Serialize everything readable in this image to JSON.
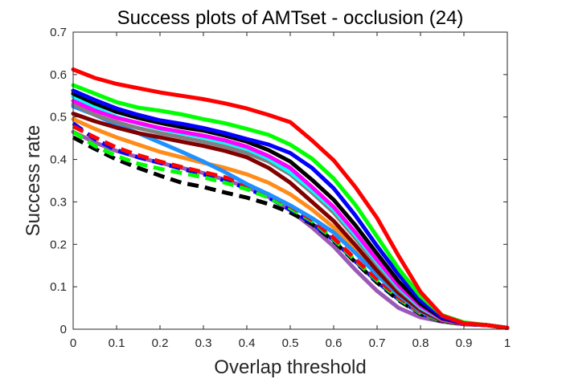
{
  "chart_data": {
    "type": "line",
    "title": "Success plots of AMTset - occlusion (24)",
    "xlabel": "Overlap threshold",
    "ylabel": "Success rate",
    "xlim": [
      0,
      1
    ],
    "ylim": [
      0,
      0.7
    ],
    "x_ticks": [
      "0",
      "0.1",
      "0.2",
      "0.3",
      "0.4",
      "0.5",
      "0.6",
      "0.7",
      "0.8",
      "0.9",
      "1"
    ],
    "y_ticks": [
      "0",
      "0.1",
      "0.2",
      "0.3",
      "0.4",
      "0.5",
      "0.6",
      "0.7"
    ],
    "grid": false,
    "x": [
      0,
      0.05,
      0.1,
      0.15,
      0.2,
      0.25,
      0.3,
      0.35,
      0.4,
      0.45,
      0.5,
      0.55,
      0.6,
      0.65,
      0.7,
      0.75,
      0.8,
      0.85,
      0.9,
      0.95,
      1
    ],
    "series": [
      {
        "color": "#FF0000",
        "dash": "solid",
        "values": [
          0.612,
          0.592,
          0.578,
          0.568,
          0.558,
          0.55,
          0.542,
          0.532,
          0.52,
          0.505,
          0.488,
          0.445,
          0.398,
          0.335,
          0.262,
          0.172,
          0.088,
          0.032,
          0.014,
          0.01,
          0.003
        ]
      },
      {
        "color": "#00FF00",
        "dash": "solid",
        "values": [
          0.575,
          0.555,
          0.535,
          0.522,
          0.515,
          0.506,
          0.495,
          0.485,
          0.472,
          0.458,
          0.435,
          0.402,
          0.355,
          0.293,
          0.218,
          0.142,
          0.078,
          0.033,
          0.016,
          0.01,
          0.003
        ]
      },
      {
        "color": "#0000FF",
        "dash": "solid",
        "values": [
          0.562,
          0.54,
          0.52,
          0.505,
          0.492,
          0.484,
          0.474,
          0.462,
          0.448,
          0.435,
          0.415,
          0.38,
          0.332,
          0.268,
          0.196,
          0.128,
          0.068,
          0.028,
          0.014,
          0.01,
          0.003
        ]
      },
      {
        "color": "#000000",
        "dash": "solid",
        "values": [
          0.555,
          0.532,
          0.512,
          0.498,
          0.486,
          0.476,
          0.468,
          0.456,
          0.442,
          0.422,
          0.395,
          0.352,
          0.305,
          0.245,
          0.178,
          0.112,
          0.06,
          0.026,
          0.014,
          0.01,
          0.003
        ]
      },
      {
        "color": "#FF00FF",
        "dash": "solid",
        "values": [
          0.538,
          0.515,
          0.498,
          0.486,
          0.474,
          0.465,
          0.456,
          0.445,
          0.43,
          0.408,
          0.38,
          0.335,
          0.288,
          0.228,
          0.163,
          0.102,
          0.055,
          0.024,
          0.013,
          0.01,
          0.003
        ]
      },
      {
        "color": "#00FFFF",
        "dash": "solid",
        "values": [
          0.548,
          0.522,
          0.5,
          0.485,
          0.472,
          0.462,
          0.452,
          0.44,
          0.425,
          0.402,
          0.37,
          0.328,
          0.282,
          0.222,
          0.158,
          0.098,
          0.052,
          0.024,
          0.013,
          0.01,
          0.003
        ]
      },
      {
        "color": "#808080",
        "dash": "solid",
        "values": [
          0.53,
          0.505,
          0.488,
          0.474,
          0.462,
          0.452,
          0.442,
          0.43,
          0.415,
          0.395,
          0.365,
          0.322,
          0.275,
          0.215,
          0.152,
          0.094,
          0.05,
          0.022,
          0.013,
          0.01,
          0.003
        ]
      },
      {
        "color": "#800000",
        "dash": "solid",
        "values": [
          0.508,
          0.49,
          0.475,
          0.462,
          0.452,
          0.442,
          0.432,
          0.42,
          0.405,
          0.38,
          0.345,
          0.3,
          0.255,
          0.198,
          0.138,
          0.085,
          0.045,
          0.02,
          0.012,
          0.01,
          0.003
        ]
      },
      {
        "color": "#1E90FF",
        "dash": "solid",
        "values": [
          0.525,
          0.505,
          0.482,
          0.462,
          0.44,
          0.418,
          0.395,
          0.37,
          0.342,
          0.318,
          0.292,
          0.262,
          0.228,
          0.18,
          0.128,
          0.08,
          0.042,
          0.02,
          0.012,
          0.01,
          0.003
        ]
      },
      {
        "color": "#FF8C1A",
        "dash": "solid",
        "values": [
          0.495,
          0.472,
          0.452,
          0.435,
          0.418,
          0.405,
          0.392,
          0.38,
          0.365,
          0.345,
          0.318,
          0.282,
          0.24,
          0.188,
          0.132,
          0.082,
          0.042,
          0.02,
          0.012,
          0.01,
          0.003
        ]
      },
      {
        "color": "#FF0000",
        "dash": "dashed",
        "values": [
          0.478,
          0.452,
          0.428,
          0.41,
          0.395,
          0.382,
          0.37,
          0.358,
          0.34,
          0.318,
          0.29,
          0.258,
          0.215,
          0.165,
          0.118,
          0.075,
          0.04,
          0.02,
          0.012,
          0.01,
          0.003
        ]
      },
      {
        "color": "#00FF00",
        "dash": "dashed",
        "values": [
          0.465,
          0.432,
          0.408,
          0.39,
          0.378,
          0.368,
          0.358,
          0.345,
          0.33,
          0.31,
          0.285,
          0.255,
          0.212,
          0.162,
          0.115,
          0.072,
          0.038,
          0.019,
          0.012,
          0.01,
          0.003
        ]
      },
      {
        "color": "#0000FF",
        "dash": "dashed",
        "values": [
          0.485,
          0.448,
          0.422,
          0.405,
          0.392,
          0.378,
          0.365,
          0.35,
          0.332,
          0.31,
          0.282,
          0.25,
          0.21,
          0.16,
          0.112,
          0.07,
          0.037,
          0.019,
          0.012,
          0.01,
          0.003
        ]
      },
      {
        "color": "#000000",
        "dash": "dashed",
        "values": [
          0.452,
          0.425,
          0.4,
          0.38,
          0.362,
          0.345,
          0.335,
          0.322,
          0.31,
          0.295,
          0.275,
          0.248,
          0.208,
          0.158,
          0.11,
          0.068,
          0.036,
          0.018,
          0.012,
          0.01,
          0.003
        ]
      },
      {
        "color": "#9B59B6",
        "dash": "solid",
        "values": [
          0.465,
          0.44,
          0.42,
          0.405,
          0.392,
          0.38,
          0.368,
          0.352,
          0.335,
          0.312,
          0.28,
          0.24,
          0.195,
          0.14,
          0.09,
          0.05,
          0.028,
          0.018,
          0.012,
          0.01,
          0.003
        ]
      }
    ]
  }
}
